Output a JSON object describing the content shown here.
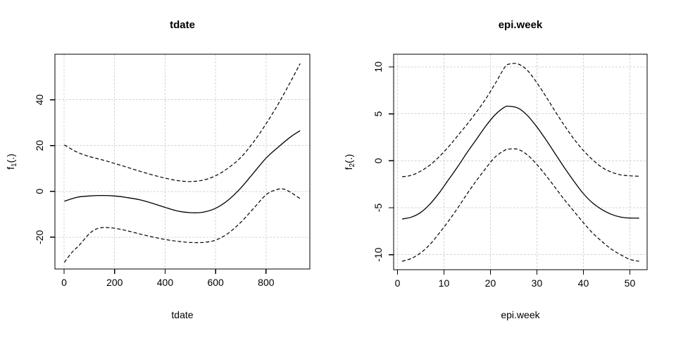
{
  "figure": {
    "background": "#ffffff",
    "curve_color": "#000000",
    "grid_color": "#d4d4d4",
    "box_color": "#000000"
  },
  "chart_data": [
    {
      "type": "line",
      "title": "tdate",
      "xlabel": "tdate",
      "ylabel": {
        "base": "f",
        "sub": "1",
        "args": "(.)"
      },
      "xlim": [
        -36.4,
        973.4
      ],
      "ylim": [
        -33.9,
        59.9
      ],
      "xticks": [
        0,
        200,
        400,
        600,
        800
      ],
      "yticks": [
        -20,
        0,
        20,
        40
      ],
      "grid": true,
      "legend": null,
      "series": [
        {
          "name": "fit",
          "line_style": "solid",
          "x": [
            1,
            50,
            100,
            150,
            200,
            250,
            300,
            350,
            400,
            450,
            500,
            550,
            600,
            650,
            700,
            750,
            800,
            850,
            900,
            935
          ],
          "y": [
            -4.3,
            -2.6,
            -2.0,
            -1.8,
            -2.0,
            -2.7,
            -3.7,
            -5.2,
            -7.0,
            -8.6,
            -9.3,
            -9.1,
            -7.4,
            -3.8,
            1.5,
            8.0,
            14.5,
            19.5,
            24.0,
            26.5
          ]
        },
        {
          "name": "upper-ci",
          "line_style": "dashed",
          "x": [
            1,
            50,
            100,
            150,
            200,
            250,
            300,
            350,
            400,
            450,
            500,
            550,
            600,
            650,
            700,
            750,
            800,
            850,
            900,
            935
          ],
          "y": [
            20.3,
            17.2,
            15.2,
            13.8,
            12.2,
            10.5,
            8.8,
            7.2,
            5.8,
            4.7,
            4.3,
            4.9,
            6.8,
            10.2,
            14.8,
            21.5,
            29.5,
            38.5,
            48.5,
            55.8
          ]
        },
        {
          "name": "lower-ci",
          "line_style": "dashed",
          "x": [
            1,
            30,
            60,
            100,
            130,
            160,
            200,
            250,
            300,
            350,
            400,
            450,
            500,
            550,
            600,
            650,
            700,
            750,
            800,
            840,
            870,
            900,
            935
          ],
          "y": [
            -31.0,
            -26.8,
            -23.5,
            -18.5,
            -16.3,
            -15.8,
            -16.1,
            -17.2,
            -18.6,
            -19.9,
            -21.0,
            -21.8,
            -22.3,
            -22.3,
            -21.3,
            -18.3,
            -13.5,
            -7.5,
            -1.5,
            0.7,
            1.0,
            -0.6,
            -3.2
          ]
        }
      ]
    },
    {
      "type": "line",
      "title": "epi.week",
      "xlabel": "epi.week",
      "ylabel": {
        "base": "f",
        "sub": "2",
        "args": "(.)"
      },
      "xlim": [
        -0.83,
        53.72
      ],
      "ylim": [
        -11.6,
        11.35
      ],
      "xticks": [
        0,
        10,
        20,
        30,
        40,
        50
      ],
      "yticks": [
        -10,
        -5,
        0,
        5,
        10
      ],
      "grid": true,
      "legend": null,
      "series": [
        {
          "name": "fit",
          "line_style": "solid",
          "x": [
            1,
            3,
            5,
            7,
            9,
            11,
            13,
            15,
            17,
            19,
            21,
            23,
            24,
            26,
            28,
            30,
            32,
            34,
            36,
            38,
            40,
            42,
            44,
            46,
            48,
            50,
            52
          ],
          "y": [
            -6.2,
            -6.0,
            -5.5,
            -4.6,
            -3.4,
            -2.0,
            -0.6,
            0.9,
            2.3,
            3.7,
            4.9,
            5.7,
            5.8,
            5.6,
            4.8,
            3.6,
            2.2,
            0.7,
            -0.8,
            -2.2,
            -3.5,
            -4.5,
            -5.2,
            -5.7,
            -6.0,
            -6.1,
            -6.1
          ]
        },
        {
          "name": "upper-ci",
          "line_style": "dashed",
          "x": [
            1,
            3,
            5,
            7,
            9,
            11,
            13,
            15,
            17,
            19,
            21,
            23,
            24,
            26,
            28,
            30,
            32,
            34,
            36,
            38,
            40,
            42,
            44,
            46,
            48,
            50,
            52
          ],
          "y": [
            -1.7,
            -1.55,
            -1.1,
            -0.45,
            0.45,
            1.5,
            2.7,
            3.9,
            5.2,
            6.6,
            8.2,
            9.9,
            10.3,
            10.3,
            9.6,
            8.3,
            6.8,
            5.2,
            3.7,
            2.3,
            1.1,
            0.1,
            -0.7,
            -1.2,
            -1.5,
            -1.6,
            -1.65
          ]
        },
        {
          "name": "lower-ci",
          "line_style": "dashed",
          "x": [
            1,
            3,
            5,
            7,
            9,
            11,
            13,
            15,
            17,
            19,
            21,
            23,
            24,
            26,
            28,
            30,
            32,
            34,
            36,
            38,
            40,
            42,
            44,
            46,
            48,
            50,
            52
          ],
          "y": [
            -10.7,
            -10.4,
            -9.8,
            -8.9,
            -7.7,
            -6.4,
            -5.0,
            -3.5,
            -2.1,
            -0.8,
            0.4,
            1.1,
            1.25,
            1.2,
            0.6,
            -0.4,
            -1.6,
            -2.9,
            -4.2,
            -5.4,
            -6.6,
            -7.7,
            -8.6,
            -9.4,
            -10.0,
            -10.5,
            -10.7
          ]
        }
      ]
    }
  ]
}
